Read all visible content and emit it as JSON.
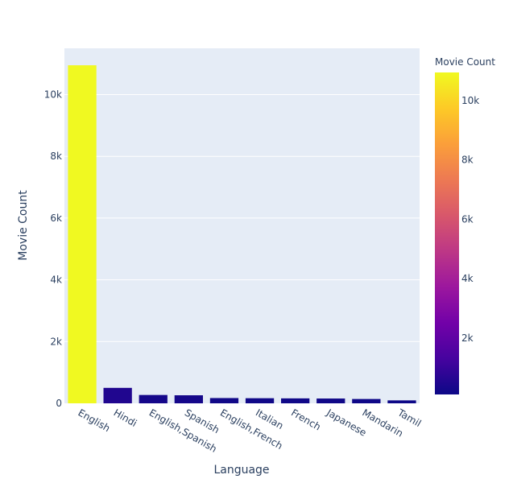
{
  "chart_data": {
    "type": "bar",
    "categories": [
      "English",
      "Hindi",
      "English,Spanish",
      "Spanish",
      "English,French",
      "Italian",
      "French",
      "Japanese",
      "Mandarin",
      "Tamil"
    ],
    "values": [
      10950,
      500,
      270,
      260,
      170,
      165,
      160,
      155,
      140,
      95
    ],
    "title": "",
    "xlabel": "Language",
    "ylabel": "Movie Count",
    "ylim": [
      0,
      11500
    ],
    "yticks": [
      0,
      2000,
      4000,
      6000,
      8000,
      10000
    ],
    "ytick_labels": [
      "0",
      "2k",
      "4k",
      "6k",
      "8k",
      "10k"
    ],
    "grid": true,
    "colorbar": {
      "title": "Movie Count",
      "range": [
        95,
        10950
      ],
      "ticks": [
        2000,
        4000,
        6000,
        8000,
        10000
      ],
      "tick_labels": [
        "2k",
        "4k",
        "6k",
        "8k",
        "10k"
      ],
      "colorscale": [
        "#0d0887",
        "#46039f",
        "#7201a8",
        "#9c179e",
        "#bd3786",
        "#d8576b",
        "#ed7953",
        "#fb9f3a",
        "#fdca26",
        "#f0f921"
      ]
    },
    "colors": {
      "plot_bg": "#e5ecf6",
      "grid": "#ffffff",
      "text": "#2a3f5f"
    }
  }
}
